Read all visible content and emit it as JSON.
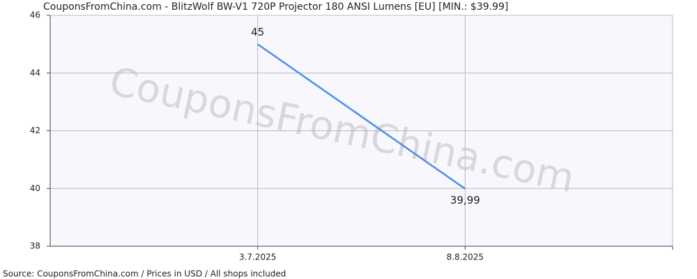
{
  "chart_data": {
    "type": "line",
    "title": "CouponsFromChina.com - BlitzWolf BW-V1 720P Projector 180 ANSI Lumens [EU] [MIN.: $39.99]",
    "watermark": "CouponsFromChina.com",
    "source": "Source:  CouponsFromChina.com / Prices in USD / All shops included",
    "categories": [
      "3.7.2025",
      "8.8.2025"
    ],
    "series": [
      {
        "name": "Price",
        "color": "#4a8fe7",
        "values": [
          45,
          39.99
        ],
        "value_labels": [
          "45",
          "39,99"
        ]
      }
    ],
    "ylim": [
      38,
      46
    ],
    "yticks": [
      38,
      40,
      42,
      44,
      46
    ],
    "grid": true
  }
}
